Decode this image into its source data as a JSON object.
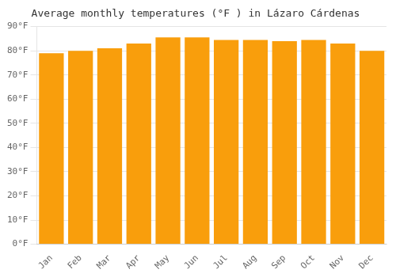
{
  "chart_data": {
    "type": "bar",
    "title": "Average monthly temperatures (°F ) in Lázaro Cárdenas",
    "categories": [
      "Jan",
      "Feb",
      "Mar",
      "Apr",
      "May",
      "Jun",
      "Jul",
      "Aug",
      "Sep",
      "Oct",
      "Nov",
      "Dec"
    ],
    "values": [
      79,
      80,
      81,
      83,
      85.5,
      85.5,
      84.5,
      84.5,
      84,
      84.5,
      83,
      80
    ],
    "color": "#f99e0c",
    "ylim": [
      0,
      90
    ],
    "yticks": [
      {
        "value": 0,
        "label": "0°F"
      },
      {
        "value": 10,
        "label": "10°F"
      },
      {
        "value": 20,
        "label": "20°F"
      },
      {
        "value": 30,
        "label": "30°F"
      },
      {
        "value": 40,
        "label": "40°F"
      },
      {
        "value": 50,
        "label": "50°F"
      },
      {
        "value": 60,
        "label": "60°F"
      },
      {
        "value": 70,
        "label": "70°F"
      },
      {
        "value": 80,
        "label": "80°F"
      },
      {
        "value": 90,
        "label": "90°F"
      }
    ],
    "grid": true
  }
}
